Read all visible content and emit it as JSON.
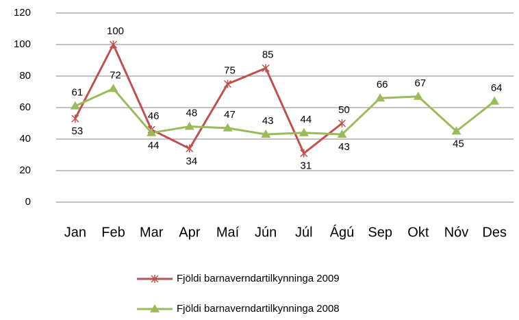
{
  "chart_data": {
    "type": "line",
    "categories": [
      "Jan",
      "Feb",
      "Mar",
      "Apr",
      "Maí",
      "Jún",
      "Júl",
      "Ágú",
      "Sep",
      "Okt",
      "Nóv",
      "Des"
    ],
    "series": [
      {
        "name": "Fjöldi barnaverndartilkynninga 2009",
        "color": "#c0504d",
        "marker": "star",
        "values": [
          53,
          100,
          46,
          34,
          75,
          85,
          31,
          50,
          null,
          null,
          null,
          null
        ]
      },
      {
        "name": "Fjöldi barnaverndartilkynninga 2008",
        "color": "#9bbb59",
        "marker": "triangle",
        "values": [
          61,
          72,
          44,
          48,
          47,
          43,
          44,
          43,
          66,
          67,
          45,
          64
        ]
      }
    ],
    "ylim": [
      0,
      120
    ],
    "yticks": [
      0,
      20,
      40,
      60,
      80,
      100,
      120
    ],
    "grid": true,
    "legend": "bottom"
  }
}
